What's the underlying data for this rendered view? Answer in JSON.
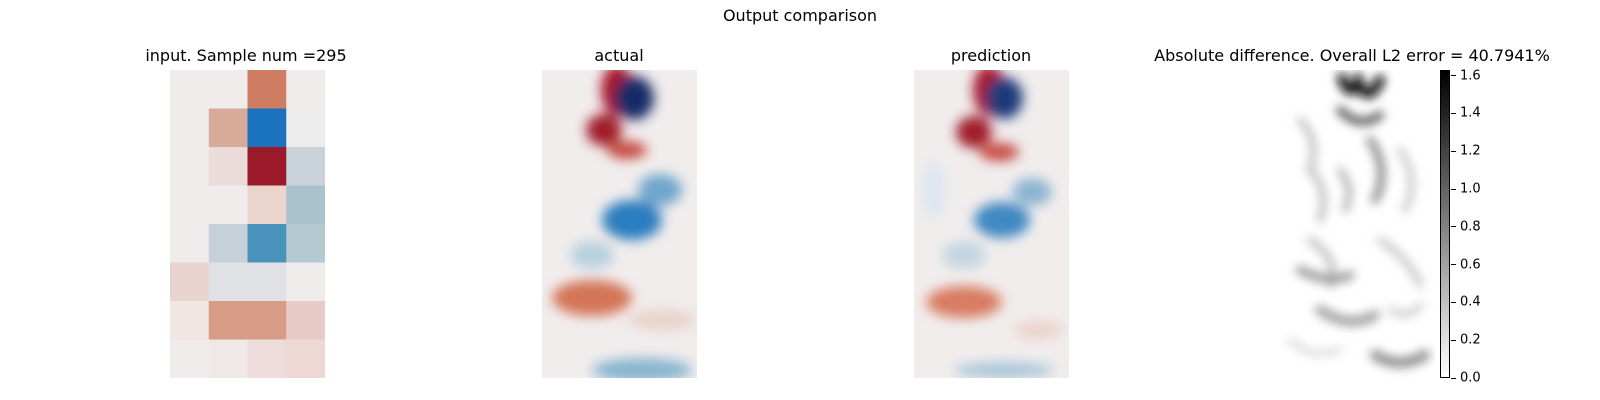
{
  "chart_data": {
    "title": "Output comparison",
    "panels": [
      {
        "title": "input. Sample num =295",
        "type": "heatmap",
        "grid_cols": 4,
        "grid_rows": 8,
        "colormap": "diverging red-blue"
      },
      {
        "title": "actual",
        "type": "heatmap",
        "colormap": "diverging red-blue"
      },
      {
        "title": "prediction",
        "type": "heatmap",
        "colormap": "diverging red-blue"
      },
      {
        "title": "Absolute difference. Overall L2 error = 40.7941%",
        "type": "heatmap",
        "colormap": "gray_r",
        "colorbar": {
          "range": [
            0,
            1.63
          ],
          "ticks": [
            "0.0",
            "0.2",
            "0.4",
            "0.6",
            "0.8",
            "1.0",
            "1.2",
            "1.4",
            "1.6"
          ]
        }
      }
    ]
  },
  "colors": {
    "neg_strong": "#0f2a5c",
    "neg": "#2a78c0",
    "neg_light": "#a7c3d3",
    "neutral": "#f2eded",
    "pos_light": "#e8cdc6",
    "pos": "#cf7d62",
    "pos_strong": "#9a1a2a"
  },
  "input_grid": [
    [
      "#f0ecec",
      "#f0ecec",
      "#cf7d62",
      "#f0ecec"
    ],
    [
      "#f0ecec",
      "#d7aa9a",
      "#1b72bf",
      "#eeeded"
    ],
    [
      "#f0ecec",
      "#eadcd8",
      "#9a1a2a",
      "#c9d2d8"
    ],
    [
      "#f0ecec",
      "#f0ecec",
      "#ead4cc",
      "#a9c2cd"
    ],
    [
      "#f0ecec",
      "#c6d0d7",
      "#4a93bd",
      "#b4c9d2"
    ],
    [
      "#e8d3ce",
      "#e0e1e4",
      "#e0e1e4",
      "#f0ecec"
    ],
    [
      "#f0e6e4",
      "#d69c85",
      "#d69c85",
      "#e8cbc4"
    ],
    [
      "#f0ecec",
      "#f0e7e7",
      "#eedbdb",
      "#eed8d3"
    ]
  ]
}
